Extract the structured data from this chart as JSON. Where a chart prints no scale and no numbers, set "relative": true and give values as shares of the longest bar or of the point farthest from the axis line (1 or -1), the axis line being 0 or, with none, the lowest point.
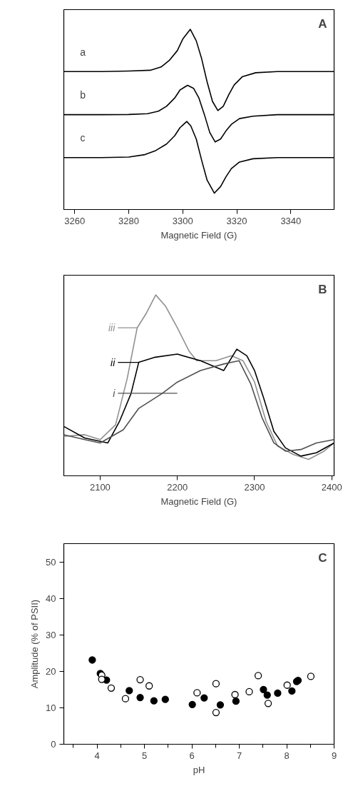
{
  "chart_data": [
    {
      "type": "line",
      "title": "A",
      "xlabel": "Magnetic Field (G)",
      "relative": true,
      "grid": false,
      "xlim": [
        3256,
        3356
      ],
      "xticks": [
        3260,
        3280,
        3300,
        3320,
        3340
      ],
      "series": [
        {
          "name": "a",
          "color": "#000000",
          "x": [
            3256,
            3270,
            3280,
            3288,
            3292,
            3295,
            3298,
            3300,
            3302.8,
            3305,
            3307,
            3309,
            3311,
            3313,
            3315,
            3317,
            3319,
            3322,
            3327,
            3335,
            3356
          ],
          "values": [
            0.742,
            0.742,
            0.745,
            0.75,
            0.77,
            0.81,
            0.87,
            0.94,
            1.0,
            0.93,
            0.82,
            0.68,
            0.56,
            0.504,
            0.53,
            0.6,
            0.66,
            0.71,
            0.735,
            0.742,
            0.742
          ]
        },
        {
          "name": "b",
          "color": "#000000",
          "x": [
            3256,
            3270,
            3280,
            3287,
            3291,
            3294,
            3297,
            3299,
            3301.8,
            3304,
            3306,
            3308,
            3310,
            3312,
            3314,
            3316,
            3318,
            3321,
            3326,
            3335,
            3356
          ],
          "values": [
            0.479,
            0.479,
            0.48,
            0.485,
            0.5,
            0.53,
            0.58,
            0.63,
            0.658,
            0.64,
            0.58,
            0.48,
            0.37,
            0.3125,
            0.33,
            0.38,
            0.42,
            0.455,
            0.47,
            0.479,
            0.479
          ]
        },
        {
          "name": "c",
          "color": "#000000",
          "x": [
            3256,
            3270,
            3280,
            3286,
            3290,
            3294,
            3297,
            3299,
            3301.5,
            3303,
            3305,
            3307,
            3309,
            3311.7,
            3314,
            3316,
            3318,
            3321,
            3326,
            3335,
            3356
          ],
          "values": [
            0.217,
            0.217,
            0.22,
            0.235,
            0.26,
            0.3,
            0.35,
            0.4,
            0.4375,
            0.41,
            0.33,
            0.2,
            0.08,
            0.0,
            0.04,
            0.1,
            0.15,
            0.19,
            0.21,
            0.217,
            0.217
          ]
        }
      ]
    },
    {
      "type": "line",
      "title": "B",
      "xlabel": "Magnetic Field (G)",
      "relative": true,
      "grid": false,
      "legend": "left",
      "xlim": [
        2053,
        2403
      ],
      "xticks": [
        2100,
        2200,
        2300,
        2400
      ],
      "series": [
        {
          "name": "iii",
          "color": "#909090",
          "x": [
            2053,
            2080,
            2100,
            2120,
            2135,
            2148,
            2160,
            2172,
            2185,
            2200,
            2215,
            2225,
            2250,
            2270,
            2285,
            2300,
            2315,
            2330,
            2350,
            2370,
            2390,
            2403
          ],
          "values": [
            0.14,
            0.15,
            0.12,
            0.21,
            0.49,
            0.8,
            0.89,
            1.0,
            0.93,
            0.8,
            0.66,
            0.6,
            0.6,
            0.63,
            0.6,
            0.47,
            0.23,
            0.08,
            0.03,
            0.0,
            0.05,
            0.1
          ]
        },
        {
          "name": "ii",
          "color": "#000000",
          "x": [
            2053,
            2080,
            2110,
            2125,
            2140,
            2150,
            2170,
            2200,
            2230,
            2260,
            2277,
            2290,
            2300,
            2312,
            2325,
            2340,
            2360,
            2380,
            2403
          ],
          "values": [
            0.2,
            0.13,
            0.1,
            0.23,
            0.4,
            0.59,
            0.62,
            0.64,
            0.6,
            0.54,
            0.67,
            0.63,
            0.54,
            0.37,
            0.17,
            0.07,
            0.02,
            0.04,
            0.1
          ]
        },
        {
          "name": "i",
          "color": "#505050",
          "x": [
            2053,
            2080,
            2100,
            2130,
            2150,
            2180,
            2200,
            2230,
            2260,
            2280,
            2295,
            2310,
            2325,
            2340,
            2360,
            2380,
            2403
          ],
          "values": [
            0.15,
            0.12,
            0.1,
            0.18,
            0.31,
            0.4,
            0.47,
            0.54,
            0.58,
            0.6,
            0.46,
            0.25,
            0.1,
            0.05,
            0.06,
            0.1,
            0.12
          ]
        }
      ]
    },
    {
      "type": "scatter",
      "title": "C",
      "xlabel": "pH",
      "ylabel": "Amplitude (% of PSII)",
      "grid": false,
      "marker": "circle",
      "xlim": [
        3.3,
        9
      ],
      "xticks": [
        {
          "value": 3.5,
          "label": null
        },
        4,
        {
          "value": 4.5,
          "label": null
        },
        5,
        {
          "value": 5.5,
          "label": null
        },
        6,
        {
          "value": 6.5,
          "label": null
        },
        7,
        {
          "value": 7.5,
          "label": null
        },
        8,
        {
          "value": 8.5,
          "label": null
        },
        9
      ],
      "ylim": [
        0,
        55
      ],
      "yticks": [
        0,
        10,
        20,
        30,
        40,
        50
      ],
      "series": [
        {
          "color": "#000000",
          "x": [
            3.9,
            4.07,
            4.2,
            4.68,
            4.91,
            5.2,
            5.44,
            6.01,
            6.26,
            6.6,
            6.93,
            7.51,
            7.59,
            7.81,
            8.11,
            8.21,
            8.24
          ],
          "values": [
            23.1,
            19.4,
            17.6,
            14.7,
            12.8,
            11.9,
            12.3,
            10.9,
            12.7,
            10.8,
            11.8,
            15.0,
            13.5,
            14.0,
            14.6,
            17.2,
            17.5
          ]
        },
        {
          "color": "#000000",
          "x": [
            4.1,
            4.1,
            4.3,
            4.6,
            4.91,
            5.1,
            6.11,
            6.51,
            6.51,
            6.91,
            7.21,
            7.4,
            7.61,
            8.01,
            8.51
          ],
          "values": [
            18.9,
            17.8,
            15.4,
            12.5,
            17.7,
            16.0,
            14.1,
            16.6,
            8.7,
            13.6,
            14.4,
            18.8,
            11.2,
            16.2,
            18.6
          ]
        }
      ]
    }
  ]
}
